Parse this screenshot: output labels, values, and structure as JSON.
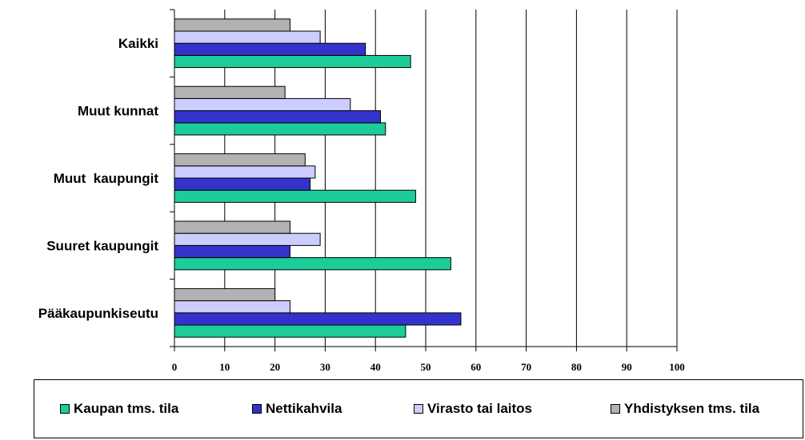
{
  "chart_data": {
    "type": "bar",
    "orientation": "horizontal",
    "categories": [
      "Pääkaupunkiseutu",
      "Suuret kaupungit",
      "Muut  kaupungit",
      "Muut kunnat",
      "Kaikki"
    ],
    "series": [
      {
        "name": "Kaupan tms. tila",
        "color": "#1ccc99",
        "values": [
          46,
          55,
          48,
          42,
          47
        ]
      },
      {
        "name": "Nettikahvila",
        "color": "#3333cc",
        "values": [
          57,
          23,
          27,
          41,
          38
        ]
      },
      {
        "name": "Virasto tai laitos",
        "color": "#ccccff",
        "values": [
          23,
          29,
          28,
          35,
          29
        ]
      },
      {
        "name": "Yhdistyksen tms. tila",
        "color": "#b2b2b2",
        "values": [
          20,
          23,
          26,
          22,
          23
        ]
      }
    ],
    "xlim": [
      0,
      100
    ],
    "xticks": [
      0,
      10,
      20,
      30,
      40,
      50,
      60,
      70,
      80,
      90,
      100
    ],
    "grid": true,
    "legend": "bottom",
    "title": "",
    "xlabel": "",
    "ylabel": ""
  }
}
